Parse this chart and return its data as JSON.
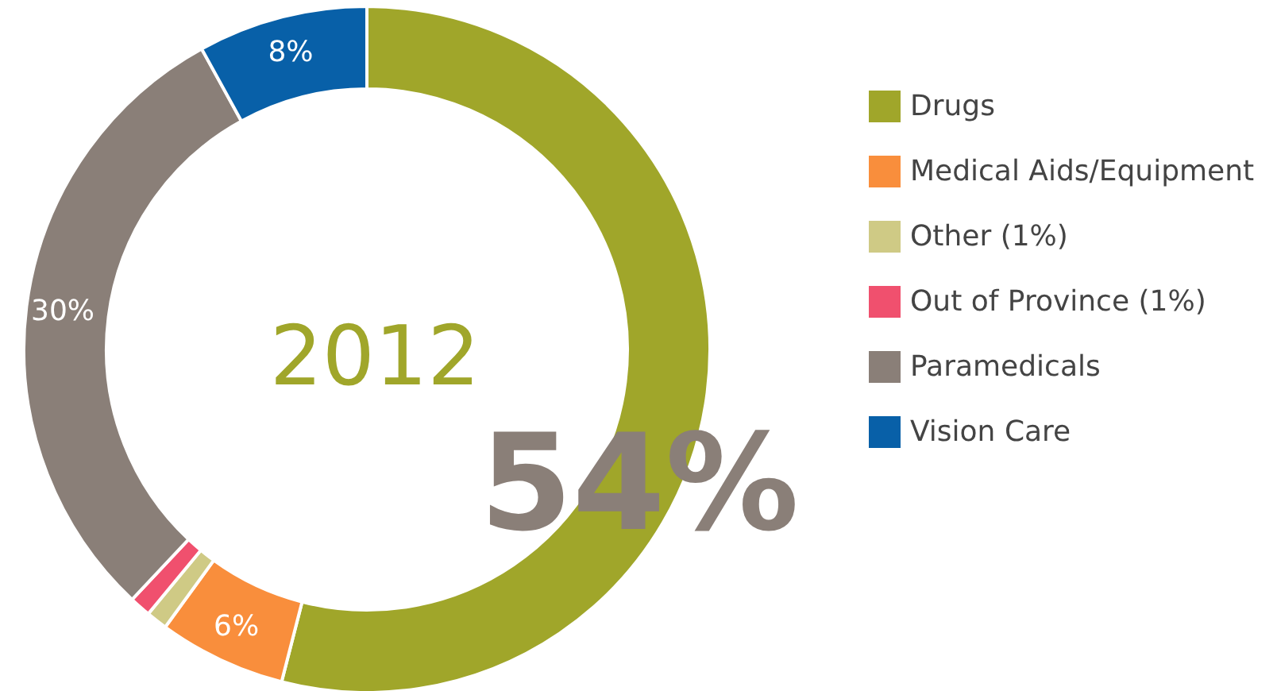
{
  "chart_data": {
    "type": "donut",
    "title": "2012",
    "categories": [
      "Drugs",
      "Medical Aids/Equipment",
      "Other (1%)",
      "Out of Province (1%)",
      "Paramedicals",
      "Vision Care"
    ],
    "values": [
      54,
      6,
      1,
      1,
      30,
      8
    ],
    "colors": [
      "#a0a62a",
      "#f98e3c",
      "#cfca85",
      "#f0506e",
      "#8a7f78",
      "#0860a8"
    ],
    "value_labels": [
      "54%",
      "6%",
      null,
      null,
      "30%",
      "8%"
    ],
    "legend": "right"
  }
}
